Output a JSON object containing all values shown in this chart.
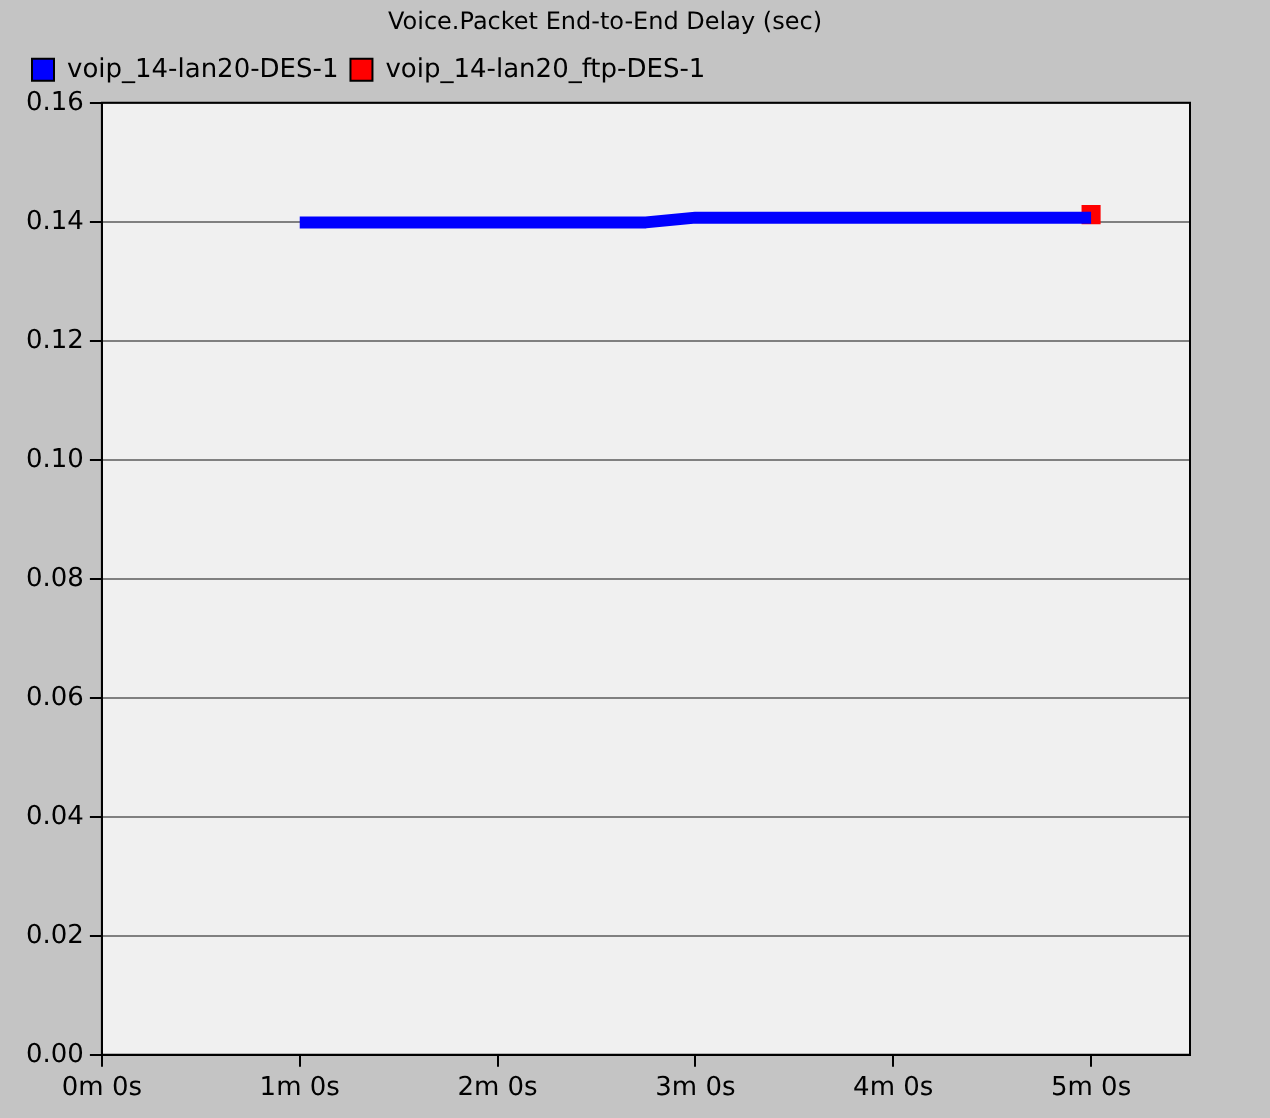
{
  "chart_data": {
    "type": "line",
    "title": "Voice.Packet End-to-End Delay (sec)",
    "categories": [
      "0m 0s",
      null,
      null,
      null,
      "1m 0s",
      null,
      null,
      null,
      "2m 0s",
      null,
      null,
      null,
      "3m 0s",
      null,
      null,
      null,
      "4m 0s",
      null,
      null,
      null,
      "5m 0s",
      null,
      null
    ],
    "series": [
      {
        "name": "voip_14-lan20-DES-1",
        "color": "#0000ff",
        "values": [
          null,
          null,
          null,
          null,
          0.1399,
          0.1399,
          0.1399,
          0.1399,
          0.1399,
          0.1399,
          0.1399,
          0.1399,
          0.1407,
          0.1407,
          0.1407,
          0.1407,
          0.1407,
          0.1407,
          0.1407,
          0.1407,
          0.1407,
          null,
          null
        ]
      },
      {
        "name": "voip_14-lan20_ftp-DES-1",
        "color": "#ff0000",
        "marker": "square",
        "values": [
          null,
          null,
          null,
          null,
          null,
          null,
          null,
          null,
          null,
          null,
          null,
          null,
          null,
          null,
          null,
          null,
          null,
          null,
          null,
          null,
          0.1412,
          null,
          null
        ]
      }
    ],
    "ylim": [
      0,
      0.16
    ],
    "yticks": [
      {
        "value": 0,
        "label": "0.00"
      },
      {
        "value": 0.02,
        "label": "0.02"
      },
      {
        "value": 0.04,
        "label": "0.04"
      },
      {
        "value": 0.06,
        "label": "0.06"
      },
      {
        "value": 0.08,
        "label": "0.08"
      },
      {
        "value": 0.1,
        "label": "0.10"
      },
      {
        "value": 0.12,
        "label": "0.12"
      },
      {
        "value": 0.14,
        "label": "0.14"
      },
      {
        "value": 0.16,
        "label": "0.16"
      }
    ],
    "grid": "y",
    "legend": "top left",
    "line_style": "solid"
  }
}
